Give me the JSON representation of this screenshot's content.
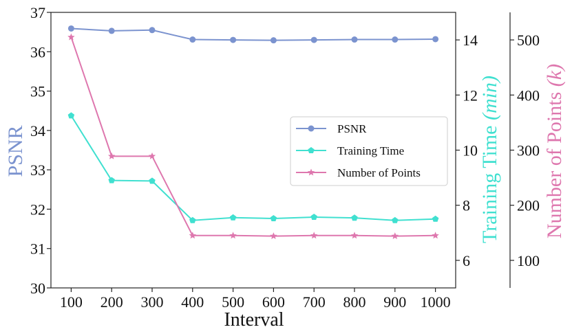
{
  "chart_data": {
    "type": "line",
    "xlabel": "Interval",
    "x": [
      100,
      200,
      300,
      400,
      500,
      600,
      700,
      800,
      900,
      1000
    ],
    "x_tick_labels": [
      "100",
      "200",
      "300",
      "400",
      "500",
      "600",
      "700",
      "800",
      "900",
      "1000"
    ],
    "axes": {
      "left": {
        "label": "PSNR",
        "label_color": "#7b93cf",
        "ylim": [
          30,
          37
        ],
        "ticks": [
          30,
          31,
          32,
          33,
          34,
          35,
          36,
          37
        ],
        "tick_labels": [
          "30",
          "31",
          "32",
          "33",
          "34",
          "35",
          "36",
          "37"
        ]
      },
      "right": {
        "label_main": "Training Time ",
        "label_paren": "(min)",
        "label_color": "#40e0d0",
        "ylim": [
          5,
          15
        ],
        "ticks": [
          6,
          8,
          10,
          12,
          14
        ],
        "tick_labels": [
          "6",
          "8",
          "10",
          "12",
          "14"
        ]
      },
      "right_outer": {
        "label_main": "Number of Points ",
        "label_paren": "(k)",
        "label_color": "#de77ae",
        "ylim": [
          50,
          550
        ],
        "ticks": [
          100,
          200,
          300,
          400,
          500
        ],
        "tick_labels": [
          "100",
          "200",
          "300",
          "400",
          "500"
        ]
      }
    },
    "series": [
      {
        "name": "PSNR",
        "axis": "left",
        "color": "#7b93cf",
        "marker": "circle",
        "values": [
          36.59,
          36.53,
          36.55,
          36.31,
          36.3,
          36.29,
          36.3,
          36.31,
          36.31,
          36.32
        ]
      },
      {
        "name": "Training Time",
        "axis": "right",
        "color": "#40e0d0",
        "marker": "pentagon",
        "values": [
          11.25,
          8.9,
          8.88,
          7.45,
          7.55,
          7.52,
          7.57,
          7.54,
          7.45,
          7.5
        ]
      },
      {
        "name": "Number of Points",
        "axis": "right_outer",
        "color": "#de77ae",
        "marker": "star",
        "values": [
          505,
          289,
          289,
          145,
          145,
          144,
          145,
          145,
          144,
          145
        ]
      }
    ],
    "legend": {
      "placement": "center-right",
      "entries": [
        "PSNR",
        "Training Time",
        "Number of Points"
      ]
    }
  }
}
